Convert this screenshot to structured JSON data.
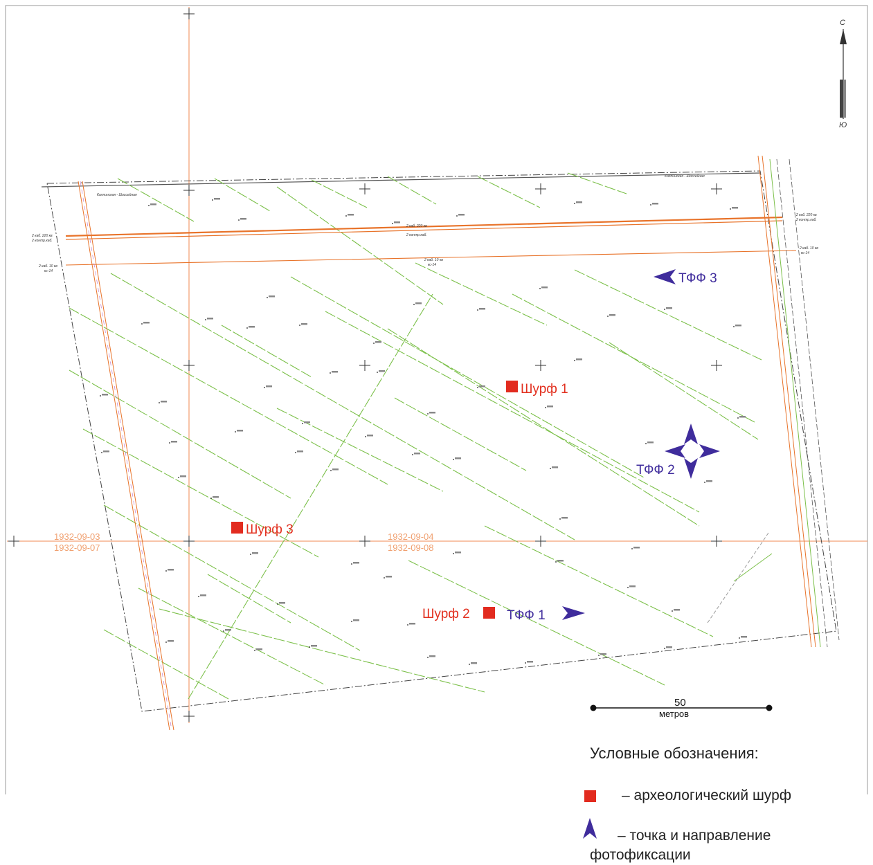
{
  "map": {
    "north_label": "С",
    "south_label": "Ю",
    "scale": {
      "value": "50",
      "unit": "метров"
    },
    "grid_labels": {
      "left_top": "1932-09-03",
      "left_bottom": "1932-09-07",
      "mid_top": "1932-09-04",
      "mid_bottom": "1932-09-08"
    },
    "pits": [
      {
        "label": "Шурф 1"
      },
      {
        "label": "Шурф 2"
      },
      {
        "label": "Шурф 3"
      }
    ],
    "photo_points": [
      {
        "label": "ТФФ 1",
        "direction": "east"
      },
      {
        "label": "ТФФ 2",
        "direction": "all"
      },
      {
        "label": "ТФФ 3",
        "direction": "west"
      }
    ],
    "colors": {
      "pit": "#e22b1f",
      "photo_point": "#3f2c9c",
      "cable": "#e8732a",
      "ditch": "#7cc04a",
      "grid_line": "#f08a50"
    },
    "annotations": {
      "cable_220": "2 каб. 220 кв",
      "control_cable": "2 контр.каб.",
      "cable_10": "2 каб. 10 кв",
      "cable_10_sub": "кс-14",
      "ditch": "кар. 100",
      "vegetation": "хуг",
      "road": "Колпинская - Шоссейная"
    }
  },
  "legend": {
    "title": "Условные обозначения:",
    "pit_text": "– археологический шурф",
    "photo_text_line1": "– точка и направление",
    "photo_text_line2": "фотофиксации"
  }
}
